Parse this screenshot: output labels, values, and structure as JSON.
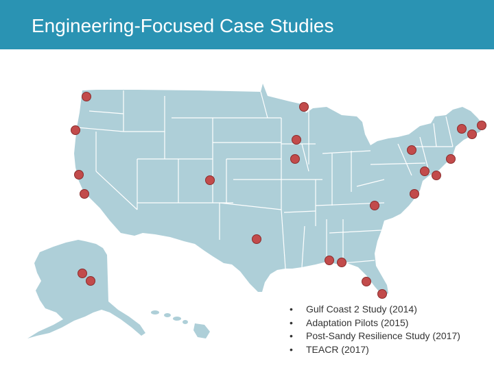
{
  "title": "Engineering-Focused Case Studies",
  "colors": {
    "header": "#2a93b3",
    "land": "#aecfd8",
    "state_border": "#ffffff",
    "marker_fill": "#c24b4b",
    "marker_stroke": "#8a2c2c"
  },
  "legend": {
    "bullet": "•",
    "items": [
      "Gulf Coast 2 Study (2014)",
      "Adaptation Pilots (2015)",
      "Post-Sandy Resilience Study (2017)",
      "TEACR (2017)"
    ]
  },
  "map": {
    "region": "United States (contiguous, Alaska, Hawaii)",
    "marker_count": 26
  }
}
